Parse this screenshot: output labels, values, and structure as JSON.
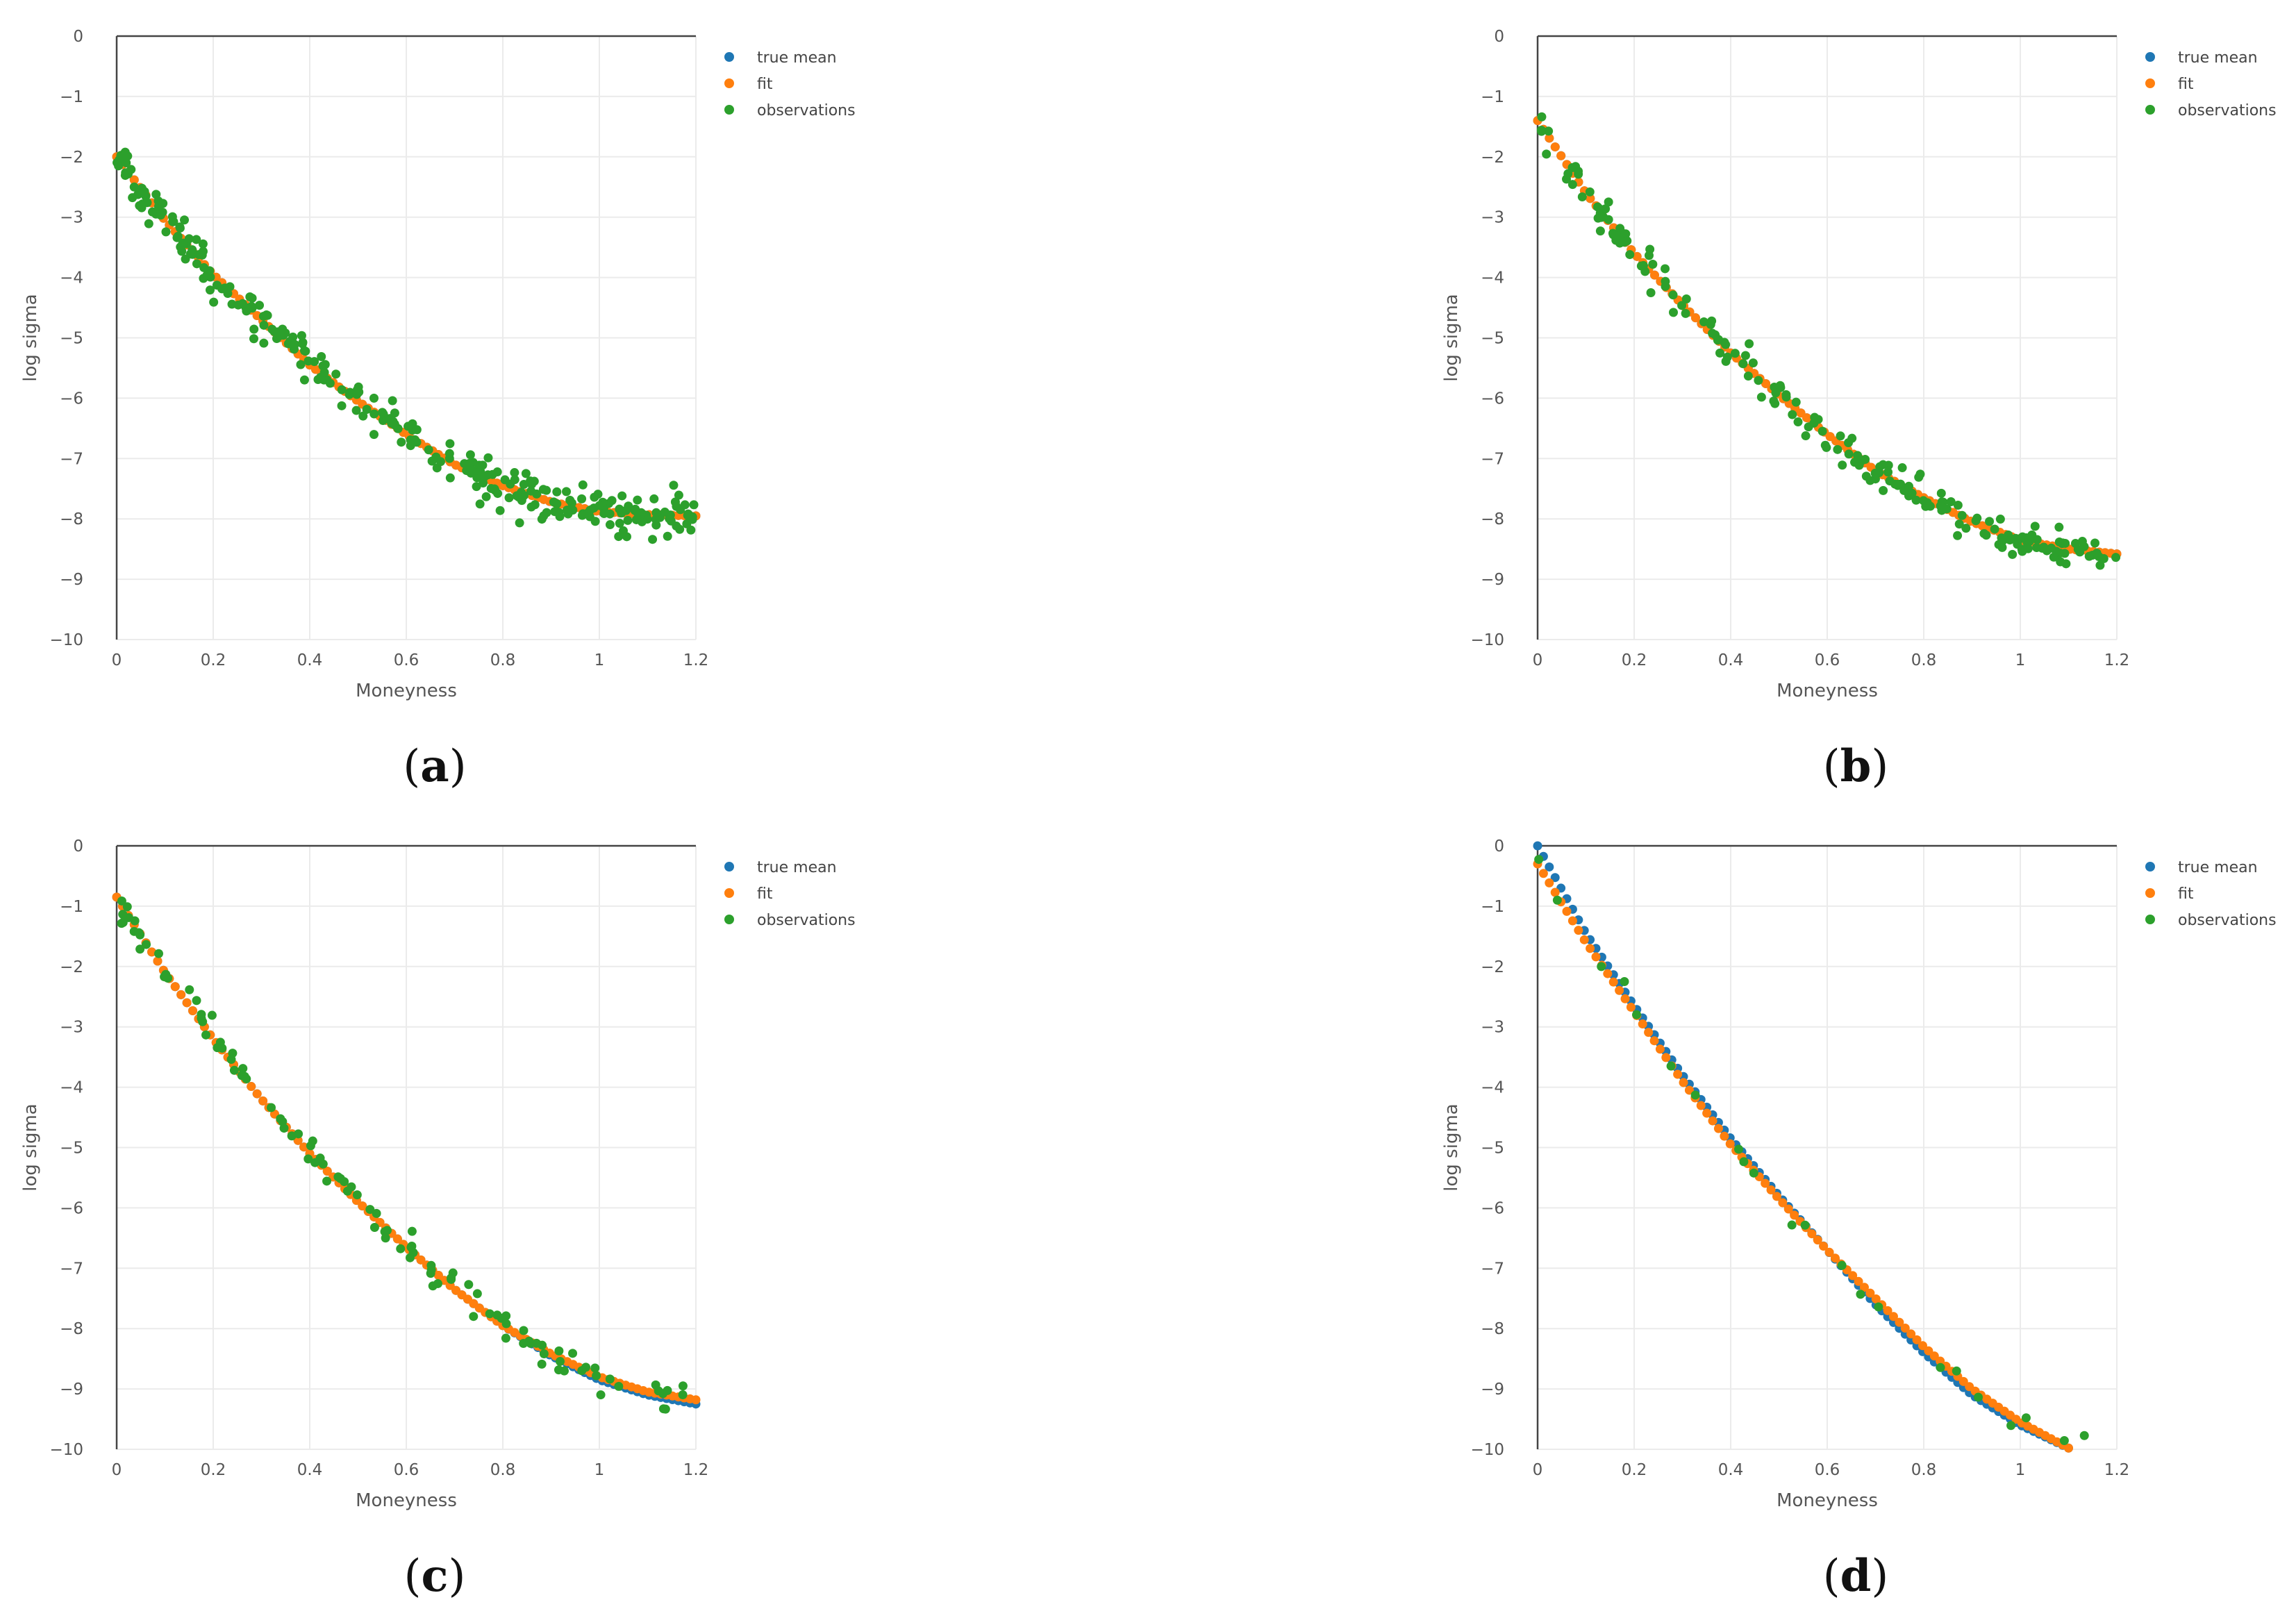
{
  "figure": {
    "legend_labels": [
      "true mean",
      "fit",
      "observations"
    ],
    "colors": {
      "true_mean": "#1f77b4",
      "fit": "#ff7f0e",
      "observations": "#2ca02c"
    }
  },
  "chart_data": [
    {
      "panel": "a",
      "caption_letter": "a",
      "type": "scatter",
      "xlabel": "Moneyness",
      "ylabel": "log sigma",
      "xlim": [
        0,
        1.2
      ],
      "ylim": [
        -10,
        0
      ],
      "x_ticks": [
        "0",
        "0.2",
        "0.4",
        "0.6",
        "0.8",
        "1",
        "1.2"
      ],
      "y_ticks": [
        "0",
        "−1",
        "−2",
        "−3",
        "−4",
        "−5",
        "−6",
        "−7",
        "−8",
        "−9",
        "−10"
      ],
      "legend": [
        "true mean",
        "fit",
        "observations"
      ],
      "series": [
        {
          "name": "true mean",
          "key": "true_mean",
          "n_points": 100,
          "curve_x": [
            0,
            0.1,
            0.2,
            0.3,
            0.4,
            0.5,
            0.6,
            0.7,
            0.8,
            0.9,
            1.0,
            1.1,
            1.2
          ],
          "curve_y": [
            -2.0,
            -3.05,
            -3.95,
            -4.7,
            -5.45,
            -6.05,
            -6.6,
            -7.1,
            -7.45,
            -7.72,
            -7.88,
            -7.93,
            -7.95
          ]
        },
        {
          "name": "fit",
          "key": "fit",
          "n_points": 100,
          "curve_x": [
            0,
            0.1,
            0.2,
            0.3,
            0.4,
            0.5,
            0.6,
            0.7,
            0.8,
            0.9,
            1.0,
            1.1,
            1.2
          ],
          "curve_y": [
            -2.0,
            -3.05,
            -3.95,
            -4.7,
            -5.45,
            -6.05,
            -6.6,
            -7.1,
            -7.45,
            -7.72,
            -7.88,
            -7.93,
            -7.95
          ]
        },
        {
          "name": "observations",
          "key": "observations",
          "n_points": 300,
          "noise": 0.18,
          "curve_x": [
            0,
            0.1,
            0.2,
            0.3,
            0.4,
            0.5,
            0.6,
            0.7,
            0.8,
            0.9,
            1.0,
            1.1,
            1.2
          ],
          "curve_y": [
            -2.0,
            -3.05,
            -3.95,
            -4.7,
            -5.45,
            -6.05,
            -6.6,
            -7.1,
            -7.45,
            -7.72,
            -7.88,
            -7.93,
            -7.95
          ]
        }
      ]
    },
    {
      "panel": "b",
      "caption_letter": "b",
      "type": "scatter",
      "xlabel": "Moneyness",
      "ylabel": "log sigma",
      "xlim": [
        0,
        1.2
      ],
      "ylim": [
        -10,
        0
      ],
      "x_ticks": [
        "0",
        "0.2",
        "0.4",
        "0.6",
        "0.8",
        "1",
        "1.2"
      ],
      "y_ticks": [
        "0",
        "−1",
        "−2",
        "−3",
        "−4",
        "−5",
        "−6",
        "−7",
        "−8",
        "−9",
        "−10"
      ],
      "legend": [
        "true mean",
        "fit",
        "observations"
      ],
      "series": [
        {
          "name": "true mean",
          "key": "true_mean",
          "n_points": 100,
          "curve_x": [
            0,
            0.1,
            0.2,
            0.3,
            0.4,
            0.5,
            0.6,
            0.7,
            0.8,
            0.9,
            1.0,
            1.1,
            1.2
          ],
          "curve_y": [
            -1.4,
            -2.6,
            -3.6,
            -4.45,
            -5.25,
            -5.95,
            -6.6,
            -7.2,
            -7.65,
            -8.05,
            -8.35,
            -8.5,
            -8.58
          ]
        },
        {
          "name": "fit",
          "key": "fit",
          "n_points": 100,
          "curve_x": [
            0,
            0.1,
            0.2,
            0.3,
            0.4,
            0.5,
            0.6,
            0.7,
            0.8,
            0.9,
            1.0,
            1.1,
            1.2
          ],
          "curve_y": [
            -1.4,
            -2.6,
            -3.6,
            -4.45,
            -5.25,
            -5.95,
            -6.6,
            -7.2,
            -7.65,
            -8.05,
            -8.35,
            -8.5,
            -8.58
          ]
        },
        {
          "name": "observations",
          "key": "observations",
          "n_points": 200,
          "noise": 0.15,
          "curve_x": [
            0,
            0.1,
            0.2,
            0.3,
            0.4,
            0.5,
            0.6,
            0.7,
            0.8,
            0.9,
            1.0,
            1.1,
            1.2
          ],
          "curve_y": [
            -1.4,
            -2.6,
            -3.6,
            -4.45,
            -5.25,
            -5.95,
            -6.6,
            -7.2,
            -7.65,
            -8.05,
            -8.35,
            -8.5,
            -8.58
          ]
        }
      ]
    },
    {
      "panel": "c",
      "caption_letter": "c",
      "type": "scatter",
      "xlabel": "Moneyness",
      "ylabel": "log sigma",
      "xlim": [
        0,
        1.2
      ],
      "ylim": [
        -10,
        0
      ],
      "x_ticks": [
        "0",
        "0.2",
        "0.4",
        "0.6",
        "0.8",
        "1",
        "1.2"
      ],
      "y_ticks": [
        "0",
        "−1",
        "−2",
        "−3",
        "−4",
        "−5",
        "−6",
        "−7",
        "−8",
        "−9",
        "−10"
      ],
      "legend": [
        "true mean",
        "fit",
        "observations"
      ],
      "series": [
        {
          "name": "true mean",
          "key": "true_mean",
          "n_points": 100,
          "curve_x": [
            0,
            0.1,
            0.2,
            0.3,
            0.4,
            0.5,
            0.6,
            0.7,
            0.8,
            0.9,
            1.0,
            1.1,
            1.2
          ],
          "curve_y": [
            -0.85,
            -2.1,
            -3.2,
            -4.2,
            -5.1,
            -5.9,
            -6.65,
            -7.35,
            -7.95,
            -8.45,
            -8.85,
            -9.1,
            -9.25
          ]
        },
        {
          "name": "fit",
          "key": "fit",
          "n_points": 100,
          "curve_x": [
            0,
            0.1,
            0.2,
            0.3,
            0.4,
            0.5,
            0.6,
            0.7,
            0.8,
            0.9,
            1.0,
            1.1,
            1.2
          ],
          "curve_y": [
            -0.85,
            -2.1,
            -3.2,
            -4.2,
            -5.1,
            -5.9,
            -6.65,
            -7.35,
            -7.95,
            -8.42,
            -8.8,
            -9.05,
            -9.18
          ]
        },
        {
          "name": "observations",
          "key": "observations",
          "n_points": 110,
          "noise": 0.14,
          "curve_x": [
            0,
            0.1,
            0.2,
            0.3,
            0.4,
            0.5,
            0.6,
            0.7,
            0.8,
            0.9,
            1.0,
            1.1,
            1.2
          ],
          "curve_y": [
            -0.85,
            -2.1,
            -3.2,
            -4.2,
            -5.1,
            -5.9,
            -6.65,
            -7.35,
            -7.95,
            -8.45,
            -8.85,
            -9.1,
            -9.25
          ]
        }
      ]
    },
    {
      "panel": "d",
      "caption_letter": "d",
      "type": "scatter",
      "xlabel": "Moneyness",
      "ylabel": "log sigma",
      "xlim": [
        0,
        1.2
      ],
      "ylim": [
        -10,
        0
      ],
      "x_ticks": [
        "0",
        "0.2",
        "0.4",
        "0.6",
        "0.8",
        "1",
        "1.2"
      ],
      "y_ticks": [
        "0",
        "−1",
        "−2",
        "−3",
        "−4",
        "−5",
        "−6",
        "−7",
        "−8",
        "−9",
        "−10"
      ],
      "legend": [
        "true mean",
        "fit",
        "observations"
      ],
      "series": [
        {
          "name": "true mean",
          "key": "true_mean",
          "n_points": 92,
          "curve_x": [
            0,
            0.1,
            0.2,
            0.3,
            0.4,
            0.5,
            0.6,
            0.7,
            0.8,
            0.9,
            1.0,
            1.1
          ],
          "curve_y": [
            0.0,
            -1.45,
            -2.65,
            -3.8,
            -4.85,
            -5.8,
            -6.7,
            -7.6,
            -8.4,
            -9.1,
            -9.6,
            -9.98
          ]
        },
        {
          "name": "fit",
          "key": "fit",
          "n_points": 92,
          "curve_x": [
            0,
            0.1,
            0.2,
            0.3,
            0.4,
            0.5,
            0.6,
            0.7,
            0.8,
            0.9,
            1.0,
            1.1
          ],
          "curve_y": [
            -0.3,
            -1.6,
            -2.75,
            -3.9,
            -4.95,
            -5.85,
            -6.7,
            -7.5,
            -8.3,
            -9.0,
            -9.55,
            -9.98
          ]
        },
        {
          "name": "observations",
          "key": "observations",
          "n_points": 22,
          "noise": 0.1,
          "curve_x": [
            0,
            0.1,
            0.2,
            0.3,
            0.4,
            0.5,
            0.6,
            0.7,
            0.8,
            0.9,
            1.0,
            1.1,
            1.17
          ],
          "curve_y": [
            -0.3,
            -1.55,
            -2.7,
            -3.85,
            -4.9,
            -5.82,
            -6.7,
            -7.55,
            -8.35,
            -9.05,
            -9.55,
            -9.85,
            -9.95
          ]
        }
      ]
    }
  ]
}
